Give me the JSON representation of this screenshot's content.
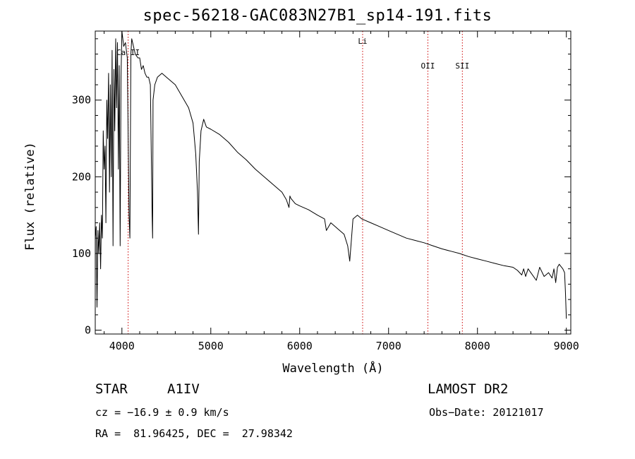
{
  "chart_data": {
    "type": "line",
    "title": "spec-56218-GAC083N27B1_sp14-191.fits",
    "xlabel": "Wavelength (Å)",
    "ylabel": "Flux (relative)",
    "xlim": [
      3700,
      9050
    ],
    "ylim": [
      -5,
      390
    ],
    "xticks": [
      4000,
      5000,
      6000,
      7000,
      8000,
      9000
    ],
    "yticks": [
      0,
      100,
      200,
      300
    ],
    "series": [
      {
        "name": "spectrum",
        "x": [
          3700,
          3710,
          3720,
          3730,
          3740,
          3750,
          3760,
          3770,
          3780,
          3790,
          3800,
          3810,
          3820,
          3830,
          3840,
          3850,
          3860,
          3870,
          3880,
          3890,
          3900,
          3910,
          3920,
          3930,
          3940,
          3950,
          3960,
          3970,
          3980,
          3990,
          4000,
          4020,
          4040,
          4060,
          4080,
          4090,
          4101,
          4110,
          4130,
          4150,
          4180,
          4200,
          4220,
          4240,
          4260,
          4280,
          4300,
          4320,
          4340,
          4345,
          4350,
          4370,
          4400,
          4450,
          4500,
          4550,
          4600,
          4650,
          4700,
          4750,
          4800,
          4830,
          4850,
          4861,
          4870,
          4890,
          4920,
          4950,
          5000,
          5100,
          5200,
          5300,
          5400,
          5500,
          5600,
          5700,
          5800,
          5850,
          5880,
          5890,
          5900,
          5950,
          6000,
          6100,
          6200,
          6280,
          6300,
          6350,
          6400,
          6450,
          6500,
          6540,
          6563,
          6580,
          6600,
          6650,
          6700,
          6800,
          6900,
          7000,
          7100,
          7200,
          7300,
          7400,
          7500,
          7600,
          7700,
          7800,
          7900,
          8000,
          8100,
          8200,
          8300,
          8400,
          8450,
          8498,
          8520,
          8542,
          8570,
          8600,
          8662,
          8700,
          8750,
          8800,
          8840,
          8860,
          8880,
          8900,
          8920,
          8940,
          8960,
          8980,
          8990,
          9000
        ],
        "y": [
          120,
          135,
          30,
          130,
          100,
          140,
          80,
          150,
          120,
          260,
          210,
          240,
          140,
          300,
          250,
          335,
          180,
          320,
          200,
          365,
          110,
          340,
          260,
          380,
          290,
          375,
          210,
          345,
          110,
          330,
          390,
          370,
          375,
          355,
          150,
          120,
          360,
          380,
          370,
          360,
          355,
          355,
          340,
          345,
          335,
          330,
          330,
          320,
          150,
          120,
          300,
          320,
          330,
          335,
          330,
          325,
          320,
          310,
          300,
          290,
          270,
          230,
          180,
          125,
          220,
          260,
          275,
          265,
          262,
          255,
          245,
          232,
          222,
          210,
          200,
          190,
          180,
          170,
          160,
          175,
          172,
          165,
          162,
          157,
          150,
          145,
          130,
          140,
          135,
          130,
          125,
          110,
          90,
          115,
          145,
          150,
          145,
          140,
          135,
          130,
          125,
          120,
          117,
          114,
          110,
          106,
          103,
          100,
          96,
          93,
          90,
          87,
          84,
          82,
          78,
          72,
          80,
          70,
          80,
          75,
          65,
          82,
          70,
          75,
          68,
          80,
          62,
          82,
          86,
          83,
          80,
          75,
          50,
          15
        ]
      }
    ],
    "line_markers": [
      {
        "label": "Ca II",
        "x": 4070
      },
      {
        "label": "Li",
        "x": 6708
      },
      {
        "label": "OII",
        "x": 7442
      },
      {
        "label": "SII",
        "x": 7830
      }
    ]
  },
  "info": {
    "object_class": "STAR",
    "subclass": "A1IV",
    "survey": "LAMOST DR2",
    "cz": "cz = −16.9 ± 0.9 km/s",
    "obs_date": "Obs−Date: 20121017",
    "coords": "RA =  81.96425, DEC =  27.98342"
  }
}
